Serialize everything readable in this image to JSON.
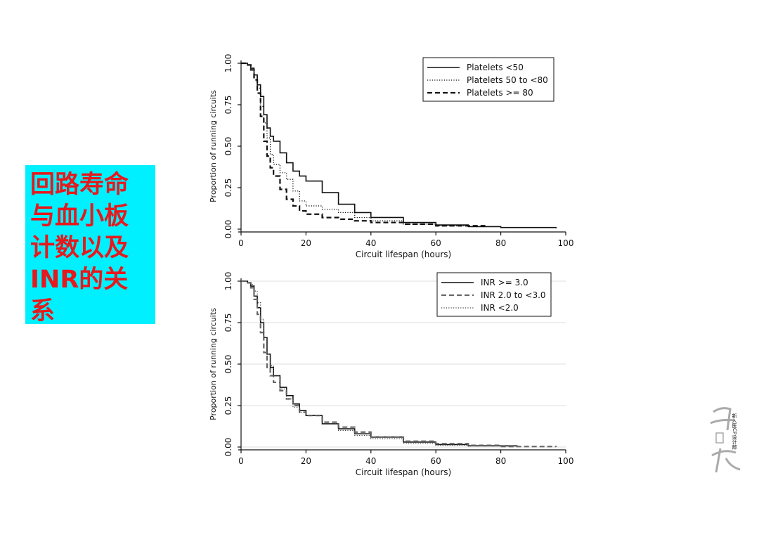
{
  "slide": {
    "title_lines": [
      "回路寿命",
      "与血小板",
      "计数以及",
      "INR的关",
      "系"
    ],
    "watermark_text": "新入医CP设计部"
  },
  "chart_data": [
    {
      "type": "line",
      "subtype": "kaplan-meier step",
      "xlabel": "Circuit lifespan (hours)",
      "ylabel": "Proportion of running circuits",
      "xlim": [
        0,
        100
      ],
      "ylim": [
        0,
        1
      ],
      "xticks": [
        0,
        20,
        40,
        60,
        80,
        100
      ],
      "yticks": [
        0.0,
        0.25,
        0.5,
        0.75,
        1.0
      ],
      "ytick_labels": [
        "0.00",
        "0.25",
        "0.50",
        "0.75",
        "1.00"
      ],
      "xtick_labels": [
        "0",
        "20",
        "40",
        "60",
        "80",
        "100"
      ],
      "grid": false,
      "legend_position": "top-right",
      "series": [
        {
          "name": "Platelets <50",
          "style": "solid",
          "x": [
            0,
            2,
            3,
            4,
            5,
            6,
            7,
            8,
            9,
            10,
            12,
            14,
            16,
            18,
            20,
            25,
            30,
            35,
            40,
            50,
            60,
            70,
            80,
            97
          ],
          "y": [
            1.0,
            0.99,
            0.97,
            0.93,
            0.87,
            0.8,
            0.69,
            0.61,
            0.56,
            0.53,
            0.46,
            0.4,
            0.35,
            0.32,
            0.29,
            0.22,
            0.15,
            0.1,
            0.07,
            0.04,
            0.025,
            0.015,
            0.01,
            0.005
          ]
        },
        {
          "name": "Platelets 50 to <80",
          "style": "dotted",
          "x": [
            0,
            2,
            3,
            4,
            5,
            6,
            7,
            8,
            9,
            10,
            12,
            14,
            16,
            18,
            20,
            25,
            30,
            35,
            40,
            50,
            60,
            70
          ],
          "y": [
            1.0,
            0.99,
            0.97,
            0.92,
            0.85,
            0.74,
            0.64,
            0.55,
            0.45,
            0.39,
            0.34,
            0.3,
            0.23,
            0.17,
            0.14,
            0.12,
            0.1,
            0.07,
            0.05,
            0.03,
            0.02,
            0.01
          ]
        },
        {
          "name": "Platelets >= 80",
          "style": "dashed",
          "x": [
            0,
            2,
            3,
            4,
            5,
            6,
            7,
            8,
            9,
            10,
            12,
            14,
            16,
            18,
            20,
            25,
            30,
            35,
            40,
            50,
            60,
            75
          ],
          "y": [
            1.0,
            0.99,
            0.96,
            0.9,
            0.82,
            0.68,
            0.53,
            0.44,
            0.37,
            0.32,
            0.24,
            0.18,
            0.14,
            0.11,
            0.09,
            0.07,
            0.06,
            0.05,
            0.04,
            0.03,
            0.02,
            0.01
          ]
        }
      ]
    },
    {
      "type": "line",
      "subtype": "kaplan-meier step",
      "xlabel": "Circuit lifespan (hours)",
      "ylabel": "Proportion of running circuits",
      "xlim": [
        0,
        100
      ],
      "ylim": [
        0,
        1
      ],
      "xticks": [
        0,
        20,
        40,
        60,
        80,
        100
      ],
      "yticks": [
        0.0,
        0.25,
        0.5,
        0.75,
        1.0
      ],
      "ytick_labels": [
        "0.00",
        "0.25",
        "0.50",
        "0.75",
        "1.00"
      ],
      "xtick_labels": [
        "0",
        "20",
        "40",
        "60",
        "80",
        "100"
      ],
      "grid": true,
      "legend_position": "top-right",
      "series": [
        {
          "name": "INR >= 3.0",
          "style": "solid",
          "color": "#111111",
          "x": [
            0,
            2,
            3,
            4,
            5,
            6,
            7,
            8,
            9,
            10,
            12,
            14,
            16,
            18,
            20,
            25,
            30,
            35,
            40,
            50,
            60,
            70,
            85
          ],
          "y": [
            1.0,
            0.99,
            0.97,
            0.91,
            0.84,
            0.75,
            0.66,
            0.56,
            0.48,
            0.43,
            0.36,
            0.31,
            0.26,
            0.22,
            0.19,
            0.14,
            0.11,
            0.08,
            0.06,
            0.03,
            0.015,
            0.007,
            0.003
          ]
        },
        {
          "name": "INR 2.0 to <3.0",
          "style": "dashed",
          "color": "#666666",
          "x": [
            0,
            2,
            3,
            4,
            5,
            6,
            7,
            8,
            9,
            10,
            12,
            14,
            16,
            18,
            20,
            25,
            30,
            35,
            40,
            50,
            60,
            70,
            80,
            97
          ],
          "y": [
            1.0,
            0.99,
            0.96,
            0.89,
            0.8,
            0.69,
            0.57,
            0.48,
            0.43,
            0.39,
            0.34,
            0.29,
            0.25,
            0.21,
            0.19,
            0.15,
            0.12,
            0.09,
            0.06,
            0.035,
            0.02,
            0.01,
            0.003,
            0.0
          ]
        },
        {
          "name": "INR <2.0",
          "style": "dotted",
          "color": "#444444",
          "x": [
            0,
            2,
            3,
            4,
            5,
            6,
            7,
            8,
            9,
            10,
            12,
            14,
            16,
            18,
            20,
            25,
            30,
            35,
            40,
            50,
            60,
            70
          ],
          "y": [
            1.0,
            0.99,
            0.98,
            0.94,
            0.87,
            0.77,
            0.66,
            0.56,
            0.49,
            0.43,
            0.35,
            0.29,
            0.24,
            0.21,
            0.19,
            0.14,
            0.1,
            0.07,
            0.05,
            0.02,
            0.01,
            0.003
          ]
        }
      ]
    }
  ]
}
